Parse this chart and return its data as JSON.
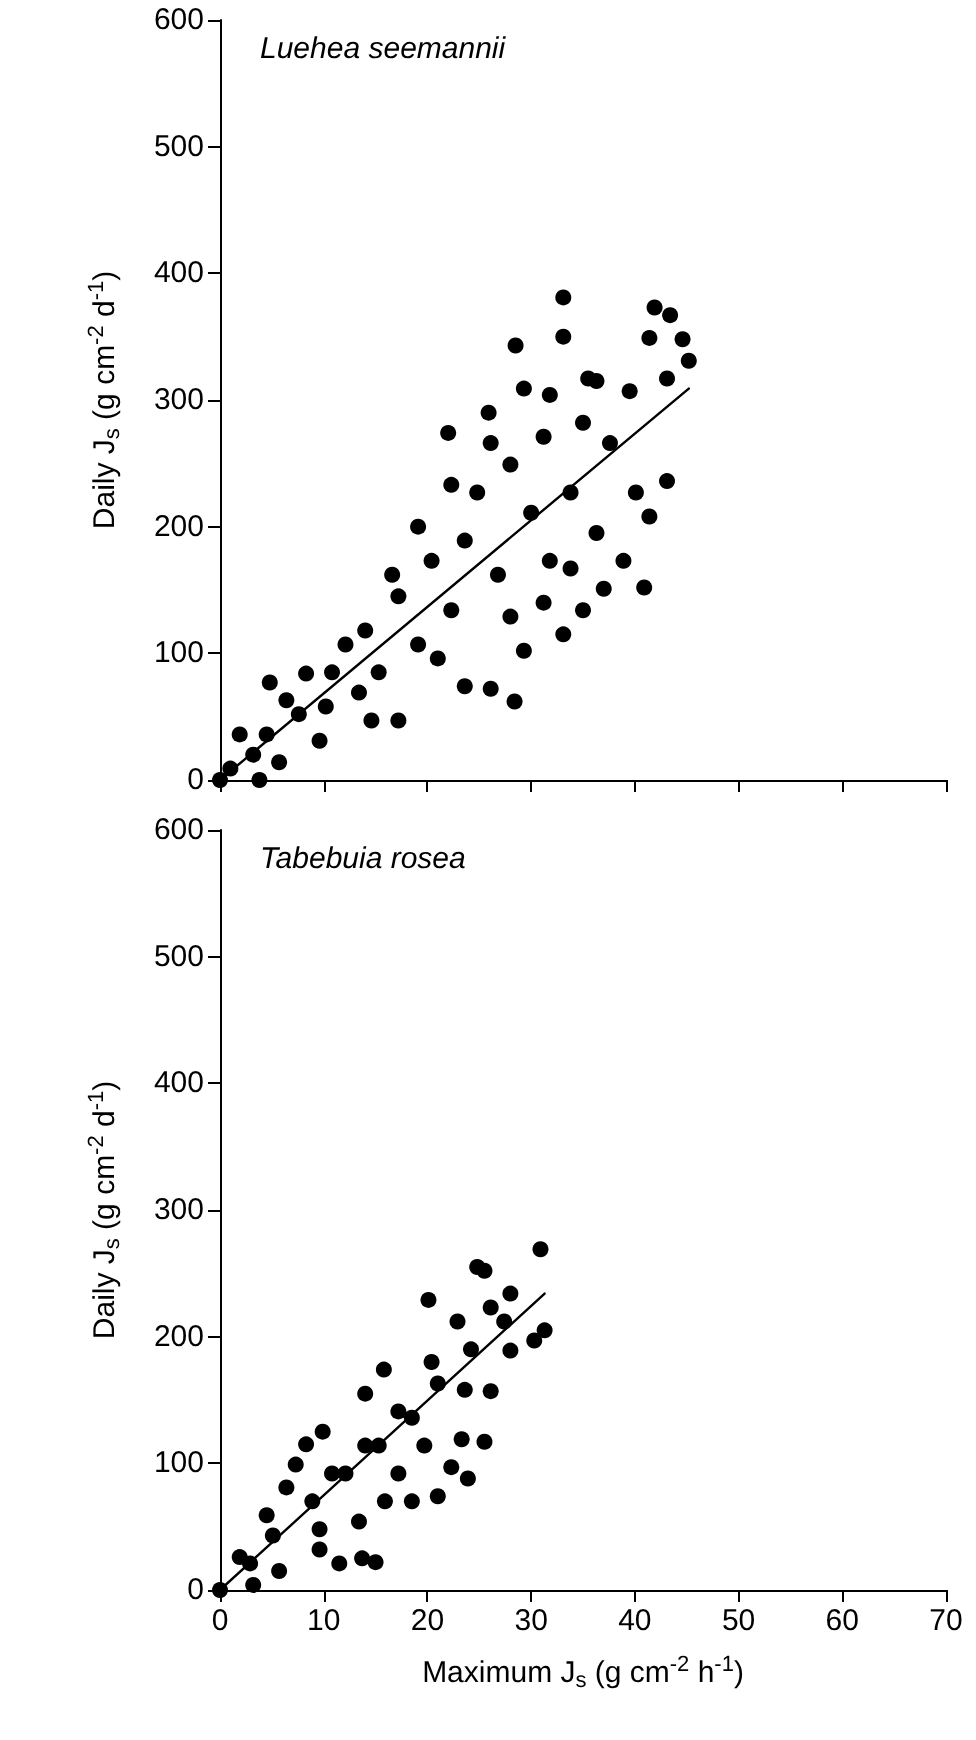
{
  "chart_data": [
    {
      "type": "scatter",
      "title": "Luehea seemannii",
      "ylabel": "Daily J$_{s}$ (g cm$^{-2}$ d$^{-1}$)",
      "xlim": [
        0,
        70
      ],
      "xticks": [
        0,
        10,
        20,
        30,
        40,
        50,
        60,
        70
      ],
      "ylim": [
        0,
        600
      ],
      "yticks": [
        0,
        100,
        200,
        300,
        400,
        500,
        600
      ],
      "tick_labels": "y",
      "marker": "circle",
      "series": [
        {
          "type": "scatter",
          "color": "#000000",
          "x": [
            33.1,
            33.1,
            28.5,
            41.9,
            43.4,
            41.4,
            44.6,
            45.2,
            43.1,
            35.5,
            43.1,
            40.9,
            28.4,
            3.8,
            22,
            25.9,
            0,
            1.9,
            4.8,
            8.3,
            12.1,
            16.6,
            19.1,
            22.3,
            26.1,
            29.3,
            31.8,
            36.3,
            39.5,
            5.7,
            9.6,
            14.6,
            17.2,
            23.6,
            26.1,
            29.3,
            33.1,
            35,
            37,
            38.9,
            41.4,
            40.1,
            37.6,
            10.8,
            14,
            17.2,
            20.4,
            23.6,
            24.8,
            28,
            31.2,
            30,
            26.8,
            22.3,
            19.1,
            15.3,
            7.6,
            4.5,
            33.8,
            35,
            31.8,
            28,
            36.3,
            33.8,
            31.2,
            21,
            13.4,
            3.2,
            1,
            6.4,
            10.2
          ],
          "values": [
            381,
            350,
            343,
            373,
            367,
            349,
            348,
            331,
            317,
            317,
            236,
            152,
            62,
            0,
            274,
            290,
            0,
            36,
            77,
            84,
            107,
            162,
            200,
            233,
            266,
            309,
            304,
            315,
            307,
            14,
            31,
            47,
            47,
            74,
            72,
            102,
            115,
            134,
            151,
            173,
            208,
            227,
            266,
            85,
            118,
            145,
            173,
            189,
            227,
            249,
            271,
            211,
            162,
            134,
            107,
            85,
            52,
            36,
            227,
            282,
            173,
            129,
            195,
            167,
            140,
            96,
            69,
            20,
            9,
            63,
            58
          ]
        },
        {
          "type": "line",
          "color": "#000000",
          "marker": "none",
          "x": [
            0,
            45.2
          ],
          "values": [
            0,
            309
          ]
        }
      ]
    },
    {
      "type": "scatter",
      "title": "Tabebuia rosea",
      "xlabel": "Maximum J$_{s}$ (g cm$^{-2}$ h$^{-1}$)",
      "ylabel": "Daily J$_{s}$ (g cm$^{-2}$ d$^{-1}$)",
      "xlim": [
        0,
        70
      ],
      "xticks": [
        0,
        10,
        20,
        30,
        40,
        50,
        60,
        70
      ],
      "ylim": [
        0,
        600
      ],
      "yticks": [
        0,
        100,
        200,
        300,
        400,
        500,
        600
      ],
      "marker": "circle",
      "series": [
        {
          "type": "scatter",
          "color": "#000000",
          "x": [
            30.9,
            24.8,
            25.5,
            31.3,
            30.3,
            28,
            20.1,
            15.8,
            14,
            9.9,
            8.3,
            7.3,
            11.5,
            13.7,
            15,
            25.5,
            23.9,
            21,
            18.5,
            26.1,
            23.3,
            22.3,
            17.2,
            13.4,
            9.6,
            5.7,
            3.2,
            0,
            1.9,
            4.5,
            6.4,
            10.8,
            14,
            17.2,
            20.4,
            22.9,
            26.1,
            28,
            27.4,
            24.2,
            21,
            18.5,
            15.3,
            12.1,
            8.9,
            5.1,
            2.9,
            9.6,
            15.9,
            19.7,
            23.6
          ],
          "values": [
            269,
            255,
            252,
            205,
            197,
            189,
            229,
            174,
            155,
            125,
            115,
            99,
            21,
            25,
            22,
            117,
            88,
            74,
            70,
            157,
            119,
            97,
            92,
            54,
            32,
            15,
            4,
            0,
            26,
            59,
            81,
            92,
            114,
            141,
            180,
            212,
            223,
            234,
            212,
            190,
            163,
            136,
            114,
            92,
            70,
            43,
            21,
            48,
            70,
            114,
            158
          ]
        },
        {
          "type": "line",
          "color": "#000000",
          "marker": "none",
          "x": [
            0,
            31.3
          ],
          "values": [
            0,
            234
          ]
        }
      ]
    }
  ]
}
